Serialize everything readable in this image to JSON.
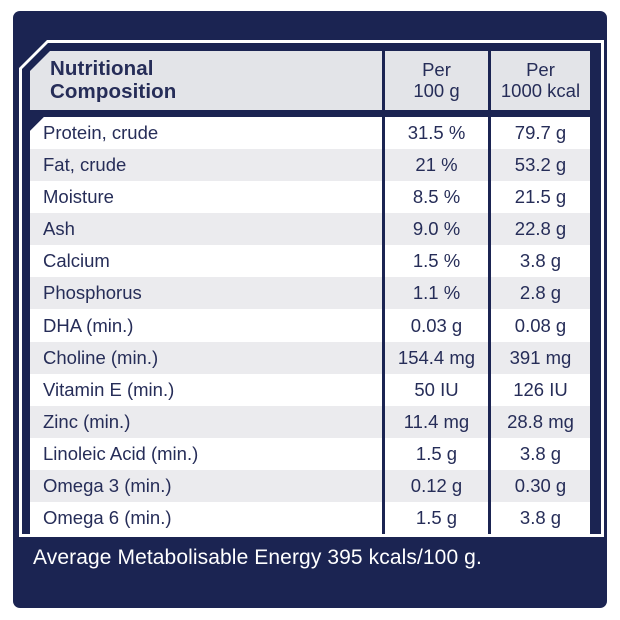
{
  "table": {
    "header": {
      "col1": "Nutritional\nComposition",
      "col2": "Per\n100 g",
      "col3": "Per\n1000 kcal"
    },
    "rows": [
      {
        "label": "Protein, crude",
        "per_100g": "31.5 %",
        "per_1000kcal": "79.7 g"
      },
      {
        "label": "Fat, crude",
        "per_100g": "21 %",
        "per_1000kcal": "53.2 g"
      },
      {
        "label": "Moisture",
        "per_100g": "8.5 %",
        "per_1000kcal": "21.5 g"
      },
      {
        "label": "Ash",
        "per_100g": "9.0 %",
        "per_1000kcal": "22.8 g"
      },
      {
        "label": "Calcium",
        "per_100g": "1.5 %",
        "per_1000kcal": "3.8 g"
      },
      {
        "label": "Phosphorus",
        "per_100g": "1.1 %",
        "per_1000kcal": "2.8 g"
      },
      {
        "label": "DHA (min.)",
        "per_100g": "0.03 g",
        "per_1000kcal": "0.08 g"
      },
      {
        "label": "Choline (min.)",
        "per_100g": "154.4 mg",
        "per_1000kcal": "391 mg"
      },
      {
        "label": "Vitamin E (min.)",
        "per_100g": "50 IU",
        "per_1000kcal": "126 IU"
      },
      {
        "label": "Zinc (min.)",
        "per_100g": "11.4 mg",
        "per_1000kcal": "28.8 mg"
      },
      {
        "label": "Linoleic Acid (min.)",
        "per_100g": "1.5 g",
        "per_1000kcal": "3.8 g"
      },
      {
        "label": "Omega 3 (min.)",
        "per_100g": "0.12 g",
        "per_1000kcal": "0.30 g"
      },
      {
        "label": "Omega 6 (min.)",
        "per_100g": "1.5 g",
        "per_1000kcal": "3.8 g"
      }
    ],
    "footer": "Average Metabolisable Energy 395 kcals/100 g."
  },
  "colors": {
    "panel_navy": "#1b2452",
    "text_navy": "#262d58",
    "header_gray": "#e3e4e8",
    "row_alt": "#ebebee",
    "white": "#ffffff"
  }
}
